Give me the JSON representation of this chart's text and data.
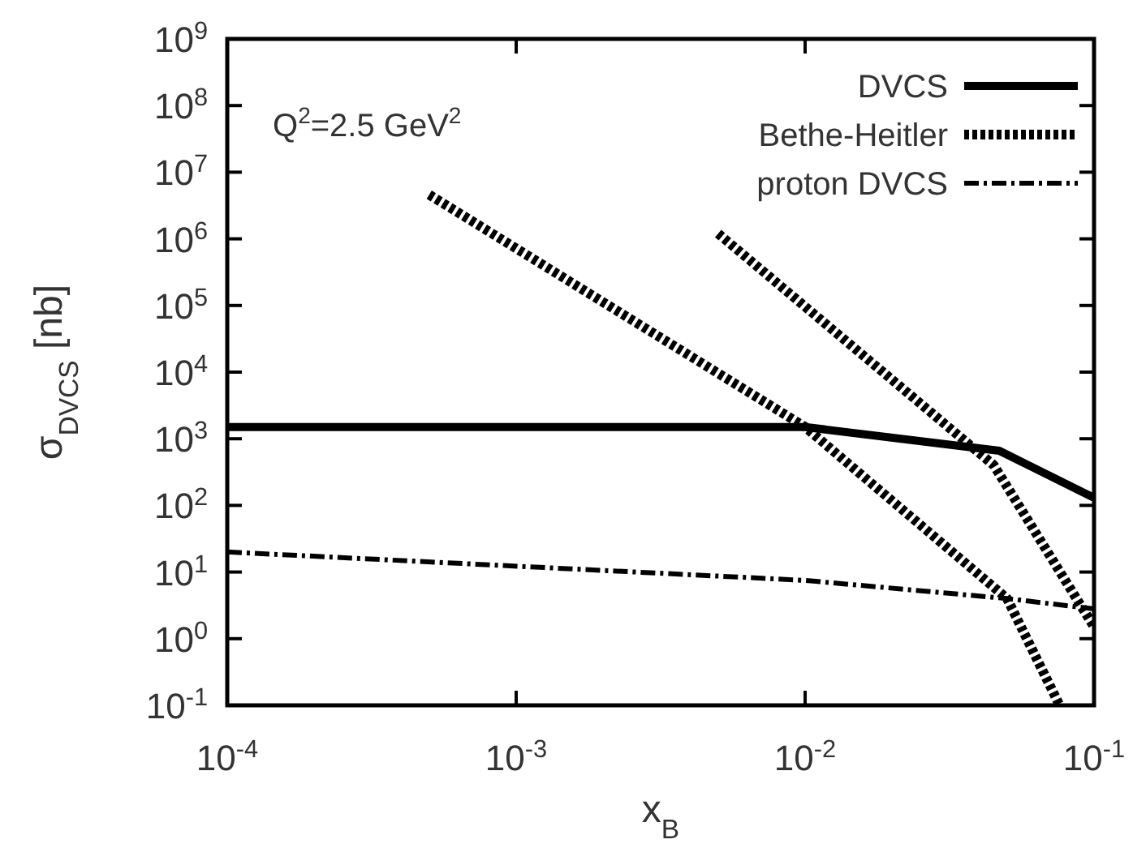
{
  "chart_data": {
    "type": "line",
    "xlabel": "x$_{B}$",
    "ylabel": "σ$_{DVCS}$ [nb]",
    "log": "xy",
    "grid": false,
    "legend": "top right",
    "annotations": [
      "Q$^{2}$=2.5 GeV$^{2}$"
    ],
    "xlim": [
      0.0001,
      0.1
    ],
    "xticks": [
      {
        "value": 0.0001,
        "label": "10$^{-4}$"
      },
      {
        "value": 0.001,
        "label": "10$^{-3}$"
      },
      {
        "value": 0.01,
        "label": "10$^{-2}$"
      },
      {
        "value": 0.1,
        "label": "10$^{-1}$"
      }
    ],
    "ylim": [
      0.1,
      1000000000
    ],
    "yticks": [
      {
        "value": 0.1,
        "label": "10$^{-1}$"
      },
      {
        "value": 1,
        "label": "10$^{0}$"
      },
      {
        "value": 10,
        "label": "10$^{1}$"
      },
      {
        "value": 100,
        "label": "10$^{2}$"
      },
      {
        "value": 1000,
        "label": "10$^{3}$"
      },
      {
        "value": 10000,
        "label": "10$^{4}$"
      },
      {
        "value": 100000,
        "label": "10$^{5}$"
      },
      {
        "value": 1000000,
        "label": "10$^{6}$"
      },
      {
        "value": 10000000,
        "label": "10$^{7}$"
      },
      {
        "value": 100000000,
        "label": "10$^{8}$"
      },
      {
        "value": 1000000000,
        "label": "10$^{9}$"
      }
    ],
    "series": [
      {
        "name": "DVCS",
        "color": "#000000",
        "line_style": "solid",
        "x": [
          0.0001,
          0.01,
          0.047,
          0.1
        ],
        "values": [
          1500,
          1500,
          660,
          130
        ]
      },
      {
        "name": "Bethe-Heitler",
        "color": "#000000",
        "line_style": "dotted",
        "x": [
          0.0005,
          0.01,
          0.05,
          0.076
        ],
        "values": [
          4600000,
          1500,
          4,
          0.1
        ]
      },
      {
        "color": "#000000",
        "line_style": "dotted",
        "x": [
          0.005,
          0.045,
          0.1
        ],
        "values": [
          1200000,
          400,
          1.5
        ]
      },
      {
        "name": "proton DVCS",
        "color": "#000000",
        "line_style": "dashed",
        "x": [
          0.0001,
          0.01,
          0.05,
          0.1
        ],
        "values": [
          20,
          7.5,
          4,
          2.8
        ]
      }
    ]
  }
}
